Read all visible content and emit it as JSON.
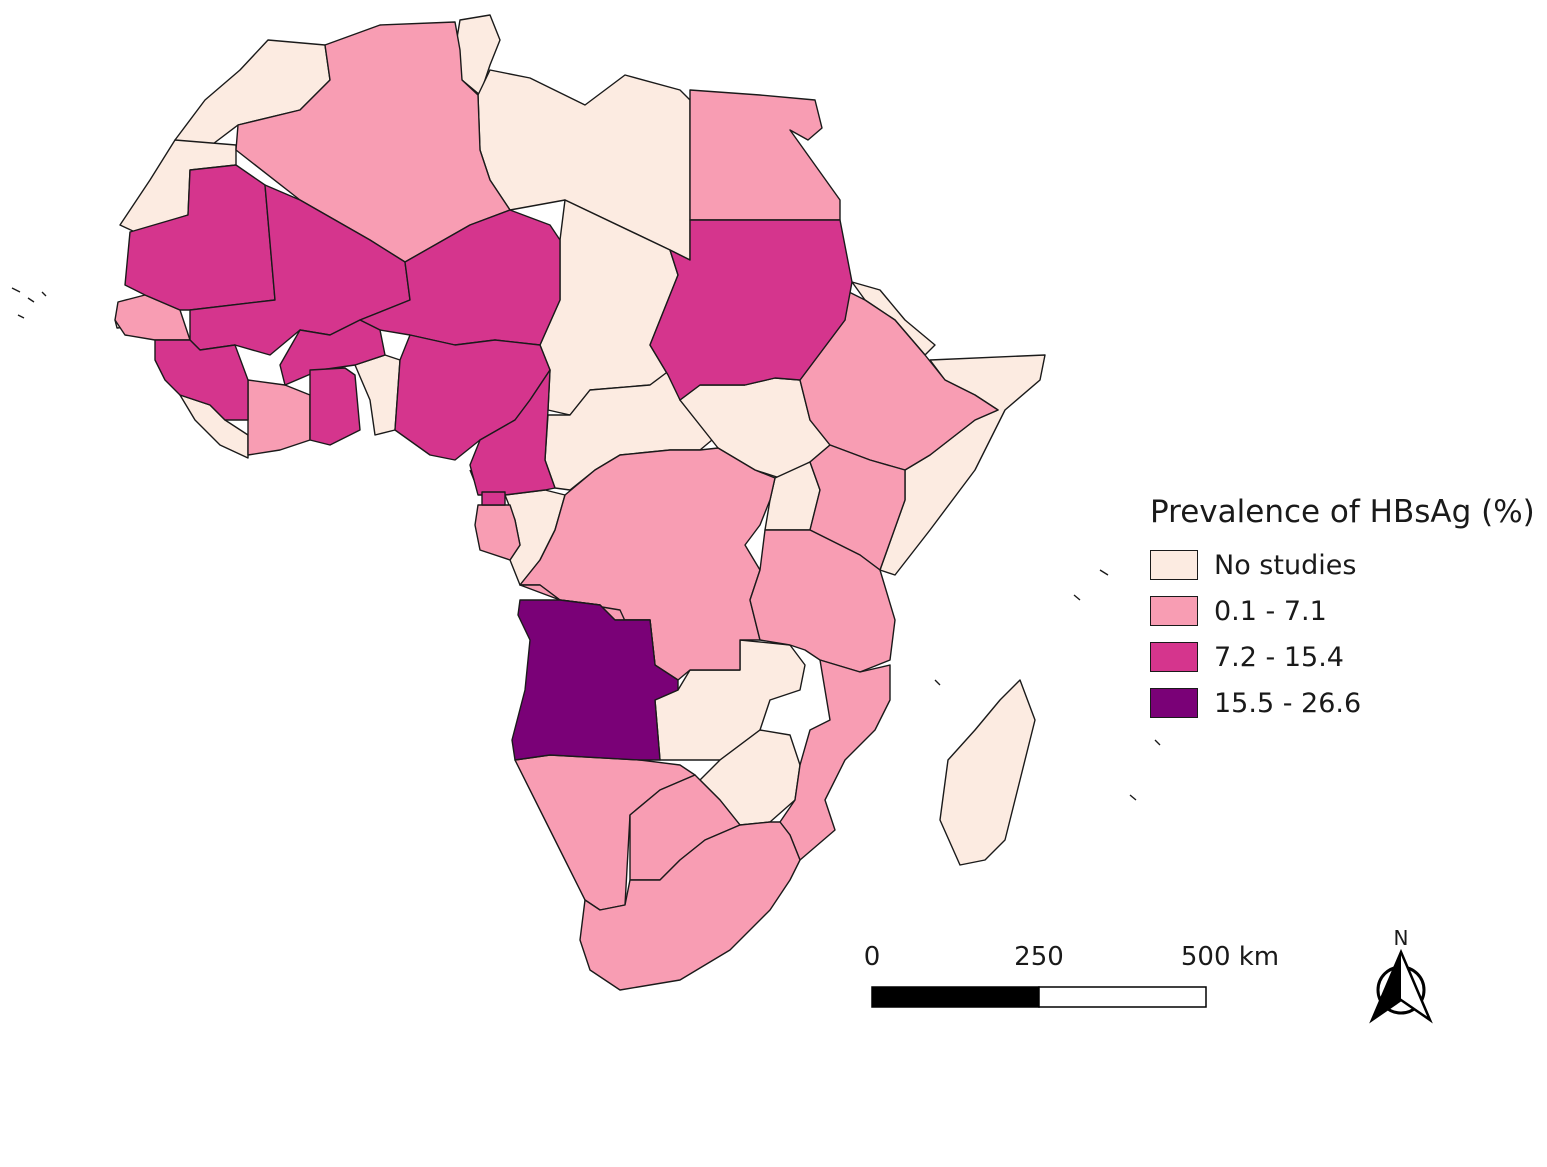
{
  "legend": {
    "title": "Prevalence of HBsAg (%)",
    "classes": [
      {
        "label": "No studies",
        "color": "#fcebe1"
      },
      {
        "label": "0.1 - 7.1",
        "color": "#f89db3"
      },
      {
        "label": "7.2 - 15.4",
        "color": "#d5358d"
      },
      {
        "label": "15.5 - 26.6",
        "color": "#7a0177"
      }
    ]
  },
  "scale_bar": {
    "labels": [
      "0",
      "250",
      "500 km"
    ]
  },
  "north_arrow": {
    "label": "N",
    "icon": "north-arrow-icon"
  }
}
